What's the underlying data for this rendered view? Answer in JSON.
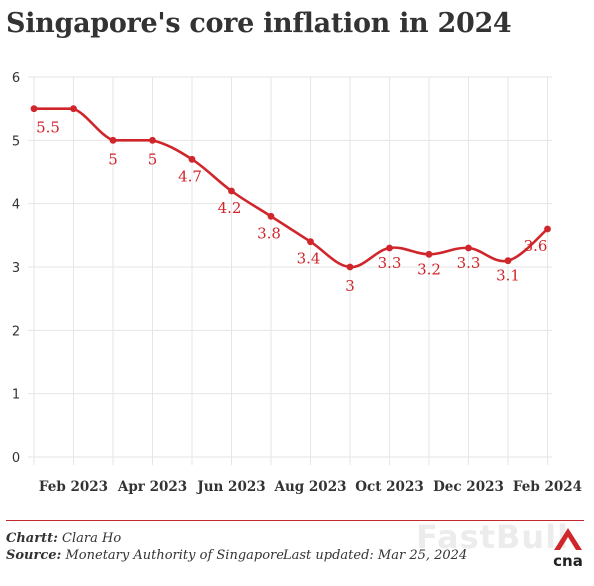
{
  "title": "Singapore's core inflation in 2024",
  "chart_data": {
    "type": "line",
    "title": "Singapore's core inflation in 2024",
    "xlabel": "",
    "ylabel": "",
    "ylim": [
      0,
      6
    ],
    "yticks": [
      "0",
      "1",
      "2",
      "3",
      "4",
      "5",
      "6"
    ],
    "xticks": [
      "Feb 2023",
      "Apr 2023",
      "Jun 2023",
      "Aug 2023",
      "Oct 2023",
      "Dec 2023",
      "Feb 2024"
    ],
    "grid": true,
    "line_color": "#d0262b",
    "x": [
      "Jan 2023",
      "Feb 2023",
      "Mar 2023",
      "Apr 2023",
      "May 2023",
      "Jun 2023",
      "Jul 2023",
      "Aug 2023",
      "Sep 2023",
      "Oct 2023",
      "Nov 2023",
      "Dec 2023",
      "Jan 2024",
      "Feb 2024"
    ],
    "values": [
      5.5,
      5.5,
      5,
      5,
      4.7,
      4.2,
      3.8,
      3.4,
      3,
      3.3,
      3.2,
      3.3,
      3.1,
      3.6
    ],
    "labels": [
      "5.5",
      "",
      "5",
      "5",
      "4.7",
      "4.2",
      "3.8",
      "3.4",
      "3",
      "3.3",
      "3.2",
      "3.3",
      "3.1",
      "3.6"
    ]
  },
  "footer": {
    "chart_prefix": "Chartt:",
    "chart_author": "Clara Ho",
    "source_prefix": "Source:",
    "source_text": "Monetary Authority of Singapore",
    "updated_text": "Last updated: Mar 25, 2024"
  },
  "watermark": "FastBull",
  "logo_text": "cna",
  "colors": {
    "accent": "#d0262b",
    "grid": "#e6e6e6"
  }
}
